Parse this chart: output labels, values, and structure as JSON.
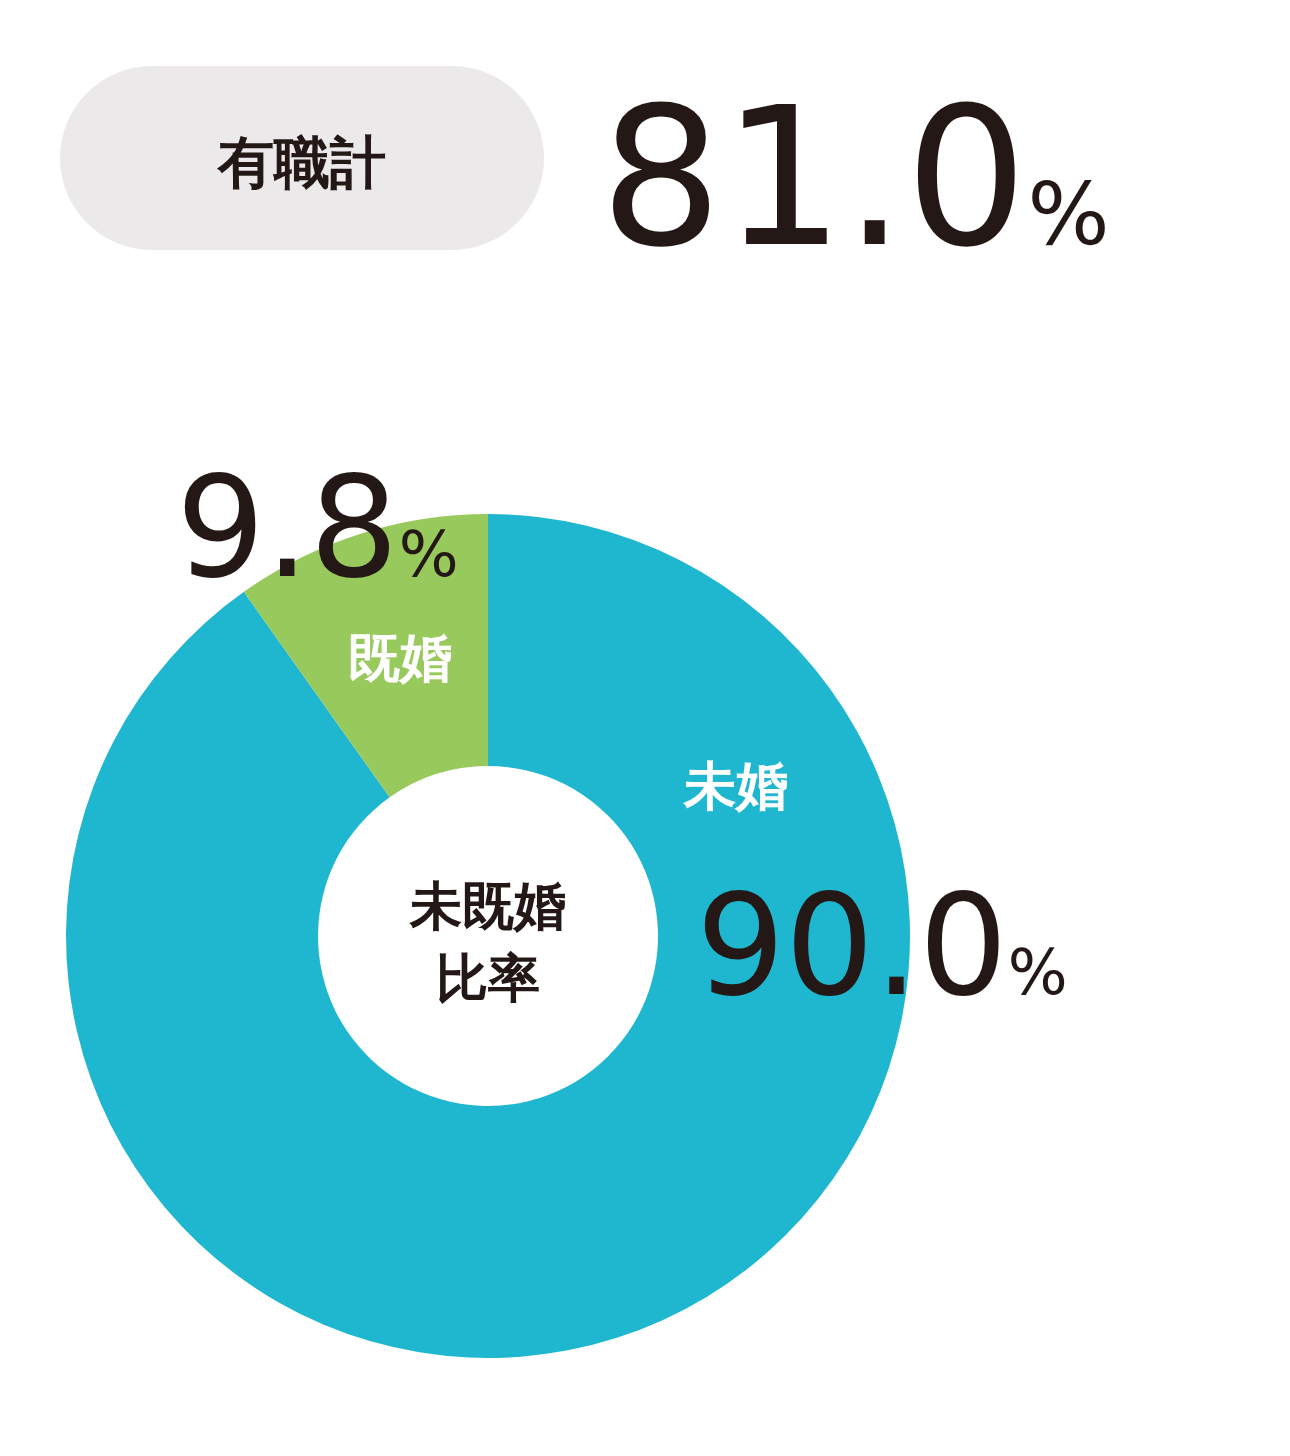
{
  "chart_data": {
    "type": "donut",
    "title": "未既婚比率",
    "annotations": [
      "有職計",
      "81.0%"
    ],
    "categories": [
      "未婚",
      "既婚"
    ],
    "values": [
      90.0,
      9.8
    ],
    "colors": [
      "#1fb7cf",
      "#98c95c"
    ],
    "value_labels": [
      "90.0%",
      "9.8%"
    ]
  }
}
